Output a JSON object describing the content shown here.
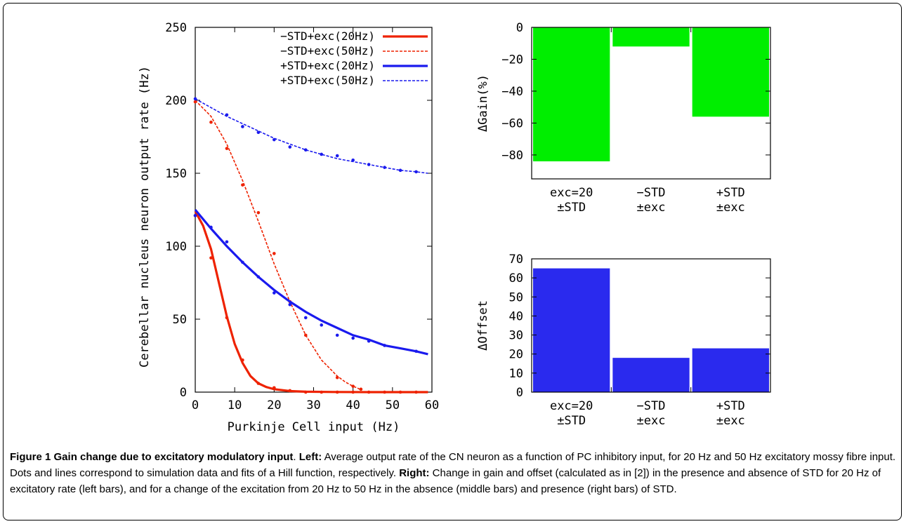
{
  "chart_data": [
    {
      "type": "line",
      "xlabel": "Purkinje Cell input (Hz)",
      "ylabel": "Cerebellar nucleus neuron output rate (Hz)",
      "xlim": [
        0,
        60
      ],
      "ylim": [
        0,
        250
      ],
      "xticks": [
        "0",
        "10",
        "20",
        "30",
        "40",
        "50",
        "60"
      ],
      "yticks": [
        "0",
        "50",
        "100",
        "150",
        "200",
        "250"
      ],
      "legend_position": "top-right",
      "series": [
        {
          "name": "−STD+exc(20Hz)",
          "color": "#ee2200",
          "style": "solid",
          "points": [
            [
              0,
              121
            ],
            [
              4,
              92
            ],
            [
              8,
              51
            ],
            [
              12,
              22
            ],
            [
              16,
              6
            ],
            [
              20,
              3
            ],
            [
              24,
              1
            ],
            [
              28,
              0
            ],
            [
              32,
              0
            ],
            [
              36,
              0
            ],
            [
              40,
              0
            ],
            [
              44,
              0
            ],
            [
              48,
              0
            ],
            [
              52,
              0
            ],
            [
              56,
              0
            ]
          ],
          "fit": [
            [
              0,
              124
            ],
            [
              2,
              114
            ],
            [
              4,
              98
            ],
            [
              6,
              75
            ],
            [
              8,
              52
            ],
            [
              10,
              33
            ],
            [
              12,
              20
            ],
            [
              14,
              11
            ],
            [
              16,
              6
            ],
            [
              18,
              3.5
            ],
            [
              20,
              2
            ],
            [
              24,
              0.7
            ],
            [
              28,
              0.3
            ],
            [
              35,
              0.1
            ],
            [
              45,
              0
            ],
            [
              59,
              0
            ]
          ]
        },
        {
          "name": "−STD+exc(50Hz)",
          "color": "#ee2200",
          "style": "dashed",
          "points": [
            [
              0,
              199
            ],
            [
              4,
              185
            ],
            [
              8,
              167
            ],
            [
              12,
              142
            ],
            [
              16,
              123
            ],
            [
              20,
              95
            ],
            [
              24,
              62
            ],
            [
              28,
              39
            ],
            [
              36,
              10
            ],
            [
              40,
              4
            ],
            [
              42,
              2
            ]
          ],
          "fit": [
            [
              0,
              200
            ],
            [
              4,
              189
            ],
            [
              8,
              170
            ],
            [
              12,
              145
            ],
            [
              16,
              117
            ],
            [
              20,
              88
            ],
            [
              24,
              62
            ],
            [
              28,
              39
            ],
            [
              32,
              22
            ],
            [
              36,
              11
            ],
            [
              38,
              7
            ],
            [
              40,
              4
            ],
            [
              41,
              3
            ],
            [
              42,
              1.5
            ]
          ]
        },
        {
          "name": "+STD+exc(20Hz)",
          "color": "#1a1aee",
          "style": "solid",
          "points": [
            [
              0,
              121
            ],
            [
              4,
              113
            ],
            [
              8,
              103
            ],
            [
              12,
              89
            ],
            [
              16,
              79
            ],
            [
              20,
              68
            ],
            [
              24,
              60
            ],
            [
              28,
              51
            ],
            [
              32,
              46
            ],
            [
              36,
              39
            ],
            [
              40,
              37
            ],
            [
              44,
              35
            ],
            [
              48,
              32
            ],
            [
              56,
              28
            ]
          ],
          "fit": [
            [
              0,
              125
            ],
            [
              4,
              112
            ],
            [
              8,
              100
            ],
            [
              12,
              89
            ],
            [
              16,
              79
            ],
            [
              20,
              70
            ],
            [
              24,
              62
            ],
            [
              28,
              55
            ],
            [
              32,
              49
            ],
            [
              36,
              44
            ],
            [
              40,
              39
            ],
            [
              44,
              36
            ],
            [
              48,
              32
            ],
            [
              52,
              30
            ],
            [
              56,
              28
            ],
            [
              59,
              26
            ]
          ]
        },
        {
          "name": "+STD+exc(50Hz)",
          "color": "#1a1aee",
          "style": "dashed",
          "points": [
            [
              0,
              201
            ],
            [
              8,
              190
            ],
            [
              12,
              182
            ],
            [
              16,
              178
            ],
            [
              20,
              173
            ],
            [
              24,
              168
            ],
            [
              28,
              166
            ],
            [
              32,
              163
            ],
            [
              36,
              162
            ],
            [
              40,
              159
            ],
            [
              44,
              156
            ],
            [
              48,
              154
            ],
            [
              52,
              152
            ],
            [
              56,
              151
            ]
          ],
          "fit": [
            [
              0,
              201
            ],
            [
              4,
              195
            ],
            [
              8,
              189
            ],
            [
              12,
              184
            ],
            [
              16,
              179
            ],
            [
              20,
              174
            ],
            [
              24,
              170
            ],
            [
              28,
              166
            ],
            [
              32,
              163
            ],
            [
              36,
              160
            ],
            [
              40,
              158
            ],
            [
              44,
              156
            ],
            [
              48,
              154
            ],
            [
              52,
              152
            ],
            [
              56,
              151
            ],
            [
              59,
              150
            ]
          ]
        }
      ]
    },
    {
      "type": "bar",
      "ylabel": "ΔGain(%)",
      "ylim": [
        -95,
        0
      ],
      "yticks": [
        "0",
        "−20",
        "−40",
        "−60",
        "−80"
      ],
      "color": "#00ee00",
      "categories": [
        [
          "exc=20",
          "±STD"
        ],
        [
          "−STD",
          "±exc"
        ],
        [
          "+STD",
          "±exc"
        ]
      ],
      "values": [
        -84,
        -12,
        -56
      ]
    },
    {
      "type": "bar",
      "ylabel": "ΔOffset",
      "ylim": [
        0,
        70
      ],
      "yticks": [
        "0",
        "10",
        "20",
        "30",
        "40",
        "50",
        "60",
        "70"
      ],
      "color": "#2a2aee",
      "categories": [
        [
          "exc=20",
          "±STD"
        ],
        [
          "−STD",
          "±exc"
        ],
        [
          "+STD",
          "±exc"
        ]
      ],
      "values": [
        65,
        18,
        23
      ]
    }
  ],
  "caption": {
    "title": "Figure 1 Gain change due to excitatory modulatory input",
    "left_label": "Left:",
    "left_text": " Average output rate of the CN neuron as a function of PC inhibitory input, for 20 Hz and 50 Hz excitatory mossy fibre input. Dots and lines correspond to simulation data and fits of a Hill function, respectively. ",
    "right_label": "Right:",
    "right_text": " Change in gain and offset (calculated as in [2]) in the presence and absence of STD for 20 Hz of excitatory rate (left bars), and for a change of the excitation from 20 Hz to 50 Hz in the absence (middle bars) and presence (right bars) of STD."
  }
}
